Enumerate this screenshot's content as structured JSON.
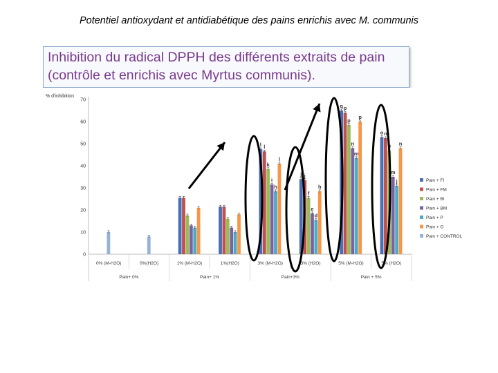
{
  "page": {
    "title": "Potentiel antioxydant et antidiabétique des pains enrichis avec  M. communis",
    "subtitle": "Inhibition du radical DPPH des différents extraits de pain (contrôle et enrichis avec Myrtus communis)."
  },
  "chart_data": {
    "type": "bar",
    "ylabel": "% d'inhibition",
    "ylim": [
      0,
      70
    ],
    "yticks": [
      0,
      10,
      20,
      30,
      40,
      50,
      60,
      70
    ],
    "grid": false,
    "legend_position": "right",
    "categories": [
      "0% (M-H2O)",
      "0%(H2O)",
      "1% (M-H2O)",
      "1%(H2O)",
      "3% (M-H2O)",
      "3% (H2O)",
      "5% (M-H2O)",
      "5% (H2O)"
    ],
    "groups": [
      {
        "label": "Pain+ 0%",
        "span": [
          0,
          1
        ]
      },
      {
        "label": "Pain+ 1%",
        "span": [
          2,
          3
        ]
      },
      {
        "label": "Pain+3%",
        "span": [
          4,
          5
        ]
      },
      {
        "label": "Pain + 5%",
        "span": [
          6,
          7
        ]
      }
    ],
    "series": [
      {
        "name": "Pain + FI",
        "color": "#4a6fb5",
        "values": [
          null,
          null,
          25.5,
          21.5,
          47.5,
          34,
          65,
          53
        ]
      },
      {
        "name": "Pain + FM",
        "color": "#c0504d",
        "values": [
          null,
          null,
          25.5,
          21.5,
          46.5,
          33.5,
          64,
          52.5
        ]
      },
      {
        "name": "Pain + BI",
        "color": "#9bbb59",
        "values": [
          null,
          null,
          17.5,
          16,
          38.5,
          25.5,
          58.5,
          47
        ]
      },
      {
        "name": "Pain + BM",
        "color": "#7b62a3",
        "values": [
          null,
          null,
          13,
          12,
          31.5,
          18.5,
          48,
          35
        ]
      },
      {
        "name": "Pain + P",
        "color": "#4bacc6",
        "values": [
          null,
          null,
          12,
          10,
          28.5,
          15.5,
          43.5,
          31
        ]
      },
      {
        "name": "Pain + G",
        "color": "#f79646",
        "values": [
          null,
          null,
          21,
          18,
          41,
          28.5,
          60,
          48
        ]
      },
      {
        "name": "Pain + CONTROL",
        "color": "#95b3d7",
        "values": [
          10,
          8,
          null,
          null,
          null,
          null,
          null,
          null
        ]
      }
    ],
    "letters": {
      "Pain + FI": [
        null,
        null,
        null,
        null,
        "l",
        "j",
        "q",
        "o"
      ],
      "Pain + FM": [
        null,
        null,
        null,
        null,
        "l",
        "j",
        "p",
        "n"
      ],
      "Pain + BI": [
        null,
        null,
        null,
        null,
        "k",
        "f",
        "p",
        "n"
      ],
      "Pain + BM": [
        null,
        null,
        null,
        null,
        "i",
        "e",
        "n",
        "m"
      ],
      "Pain + P": [
        null,
        null,
        null,
        null,
        "h",
        "d",
        "m",
        "j"
      ],
      "Pain + G": [
        null,
        null,
        null,
        null,
        "l",
        "h",
        "p",
        "n"
      ],
      "Pain + CONTROL": [
        null,
        null,
        null,
        null,
        null,
        null,
        null,
        null
      ]
    }
  }
}
